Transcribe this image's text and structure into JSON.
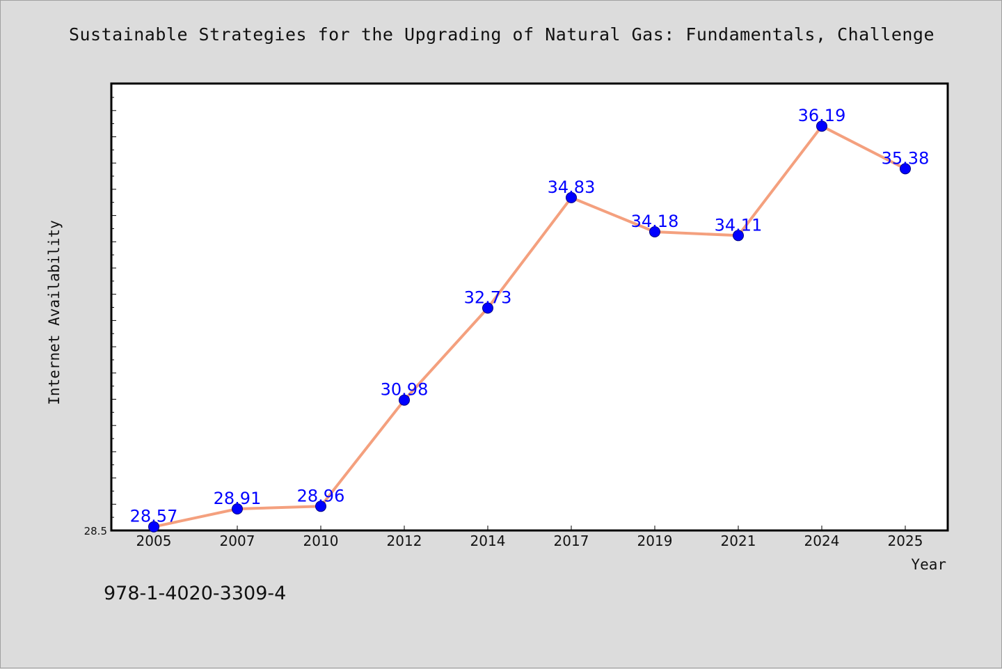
{
  "chart_data": {
    "type": "line",
    "title": "Sustainable Strategies for the Upgrading of Natural Gas: Fundamentals, Challenge",
    "xlabel": "Year",
    "ylabel": "Internet Availability",
    "categories": [
      "2005",
      "2007",
      "2010",
      "2012",
      "2014",
      "2017",
      "2019",
      "2021",
      "2024",
      "2025"
    ],
    "series": [
      {
        "values": [
          28.57,
          28.91,
          28.96,
          30.98,
          32.73,
          34.83,
          34.18,
          34.11,
          36.19,
          35.38
        ],
        "data_labels": [
          "28.57",
          "28.91",
          "28.96",
          "30.98",
          "32.73",
          "34.83",
          "34.18",
          "34.11",
          "36.19",
          "35.38"
        ]
      }
    ],
    "ylim": [
      28.5,
      37.0
    ],
    "y_tick_labels": [
      "28.5"
    ],
    "grid": false,
    "legend": "none",
    "line_color": "#f4a07e",
    "marker_color": "#0000ff",
    "label_color": "#0000ff"
  },
  "footer": {
    "isbn": "978-1-4020-3309-4"
  }
}
